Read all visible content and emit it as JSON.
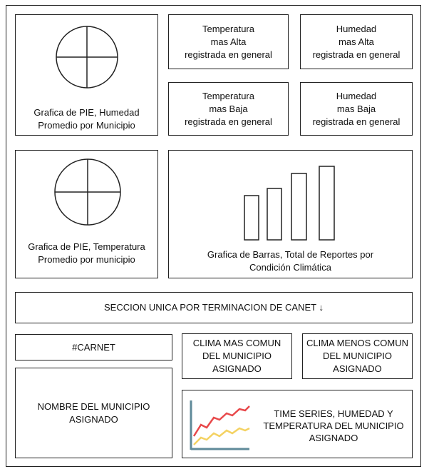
{
  "panels": {
    "pie_humidity": {
      "caption": "Grafica de PIE, Humedad\nPromedio por Municipio"
    },
    "temp_high": {
      "label": "Temperatura\nmas Alta\nregistrada en general"
    },
    "humidity_high": {
      "label": "Humedad\nmas Alta\nregistrada en general"
    },
    "temp_low": {
      "label": "Temperatura\nmas Baja\nregistrada en general"
    },
    "humidity_low": {
      "label": "Humedad\nmas  Baja\nregistrada en general"
    },
    "pie_temperature": {
      "caption": "Grafica de PIE, Temperatura\nPromedio por municipio"
    },
    "bar_chart": {
      "caption": "Grafica de Barras, Total de Reportes por\nCondición Climática"
    },
    "section_header": {
      "label": "SECCION UNICA POR TERMINACION DE CANET ↓"
    },
    "carnet": {
      "label": "#CARNET"
    },
    "clima_comun": {
      "label": "CLIMA MAS COMUN\nDEL MUNICIPIO\nASIGNADO"
    },
    "clima_menos_comun": {
      "label": "CLIMA MENOS COMUN\nDEL MUNICIPIO\nASIGNADO"
    },
    "municipio_nombre": {
      "label": "NOMBRE DEL MUNICIPIO\nASIGNADO"
    },
    "time_series": {
      "label": "TIME SERIES, HUMEDAD Y\nTEMPERATURA DEL MUNICIPIO\nASIGNADO"
    }
  },
  "colors": {
    "border": "#222222",
    "series_red": "#e8484a",
    "series_yellow": "#f4d262",
    "axis_teal": "#5f8a99"
  }
}
